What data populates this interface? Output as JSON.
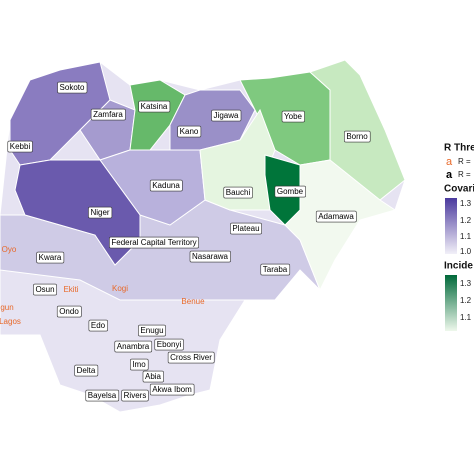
{
  "labels": {
    "sokoto": "Sokoto",
    "katsina": "Katsina",
    "jigawa": "Jigawa",
    "yobe": "Yobe",
    "zamfara": "Zamfara",
    "kano": "Kano",
    "borno": "Borno",
    "kebbi": "Kebbi",
    "bauchi": "Bauchi",
    "gombe": "Gombe",
    "kaduna": "Kaduna",
    "adamawa": "Adamawa",
    "niger": "Niger",
    "plateau": "Plateau",
    "fct": "Federal Capital Territory",
    "kwara": "Kwara",
    "nasarawa": "Nasarawa",
    "oyo": "Oyo",
    "osun": "Osun",
    "ekiti": "Ekiti",
    "kogi": "Kogi",
    "benue": "Benue",
    "taraba": "Taraba",
    "ogun": "gun",
    "ondo": "Ondo",
    "lagos": "Lagos",
    "edo": "Edo",
    "enugu": "Enugu",
    "anambra": "Anambra",
    "ebonyi": "Ebonyi",
    "cross_river": "Cross River",
    "imo": "Imo",
    "delta": "Delta",
    "abia": "Abia",
    "akwa_ibom": "Akwa Ibom",
    "bayelsa": "Bayelsa",
    "rivers": "Rivers"
  },
  "legend": {
    "threshold_title": "R Thre",
    "threshold_items": [
      {
        "symbol": "a",
        "text": "R ="
      },
      {
        "symbol": "a",
        "text": "R ="
      }
    ],
    "covariate_title": "Covari",
    "covariate_ticks": [
      "1.3",
      "1.2",
      "1.1",
      "1.0"
    ],
    "incidence_title": "Incide",
    "incidence_ticks": [
      "1.3",
      "1.2",
      "1.1"
    ]
  }
}
